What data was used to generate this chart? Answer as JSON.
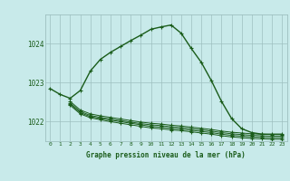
{
  "title": "Graphe pression niveau de la mer (hPa)",
  "bg_color": "#c8eaea",
  "grid_color": "#9dbfbf",
  "line_color": "#1a5c1a",
  "xlim": [
    -0.5,
    23.5
  ],
  "ylim": [
    1021.5,
    1024.75
  ],
  "yticks": [
    1022,
    1023,
    1024
  ],
  "xticks": [
    0,
    1,
    2,
    3,
    4,
    5,
    6,
    7,
    8,
    9,
    10,
    11,
    12,
    13,
    14,
    15,
    16,
    17,
    18,
    19,
    20,
    21,
    22,
    23
  ],
  "series": [
    [
      1022.85,
      1022.7,
      1022.6,
      1022.8,
      1023.3,
      1023.6,
      1023.78,
      1023.93,
      1024.08,
      1024.22,
      1024.37,
      1024.43,
      1024.48,
      1024.27,
      1023.88,
      1023.52,
      1023.05,
      1022.52,
      1022.08,
      1021.82,
      1021.72,
      1021.68,
      1021.68,
      1021.68
    ],
    [
      null,
      null,
      1022.42,
      1022.2,
      1022.1,
      1022.05,
      1022.0,
      1021.96,
      1021.92,
      1021.88,
      1021.84,
      1021.82,
      1021.79,
      1021.77,
      1021.74,
      1021.71,
      1021.68,
      1021.64,
      1021.61,
      1021.59,
      1021.57,
      1021.56,
      1021.55,
      1021.55
    ],
    [
      null,
      null,
      1022.45,
      1022.23,
      1022.13,
      1022.08,
      1022.04,
      1022.0,
      1021.96,
      1021.92,
      1021.88,
      1021.86,
      1021.83,
      1021.81,
      1021.78,
      1021.75,
      1021.72,
      1021.68,
      1021.65,
      1021.63,
      1021.61,
      1021.6,
      1021.59,
      1021.59
    ],
    [
      null,
      null,
      1022.48,
      1022.26,
      1022.16,
      1022.11,
      1022.07,
      1022.03,
      1021.99,
      1021.95,
      1021.92,
      1021.9,
      1021.87,
      1021.85,
      1021.82,
      1021.79,
      1021.76,
      1021.72,
      1021.69,
      1021.67,
      1021.65,
      1021.64,
      1021.63,
      1021.63
    ],
    [
      null,
      null,
      1022.52,
      1022.3,
      1022.2,
      1022.15,
      1022.11,
      1022.07,
      1022.03,
      1021.99,
      1021.96,
      1021.94,
      1021.91,
      1021.89,
      1021.86,
      1021.83,
      1021.8,
      1021.76,
      1021.73,
      1021.71,
      1021.69,
      1021.68,
      1021.67,
      1021.67
    ]
  ]
}
